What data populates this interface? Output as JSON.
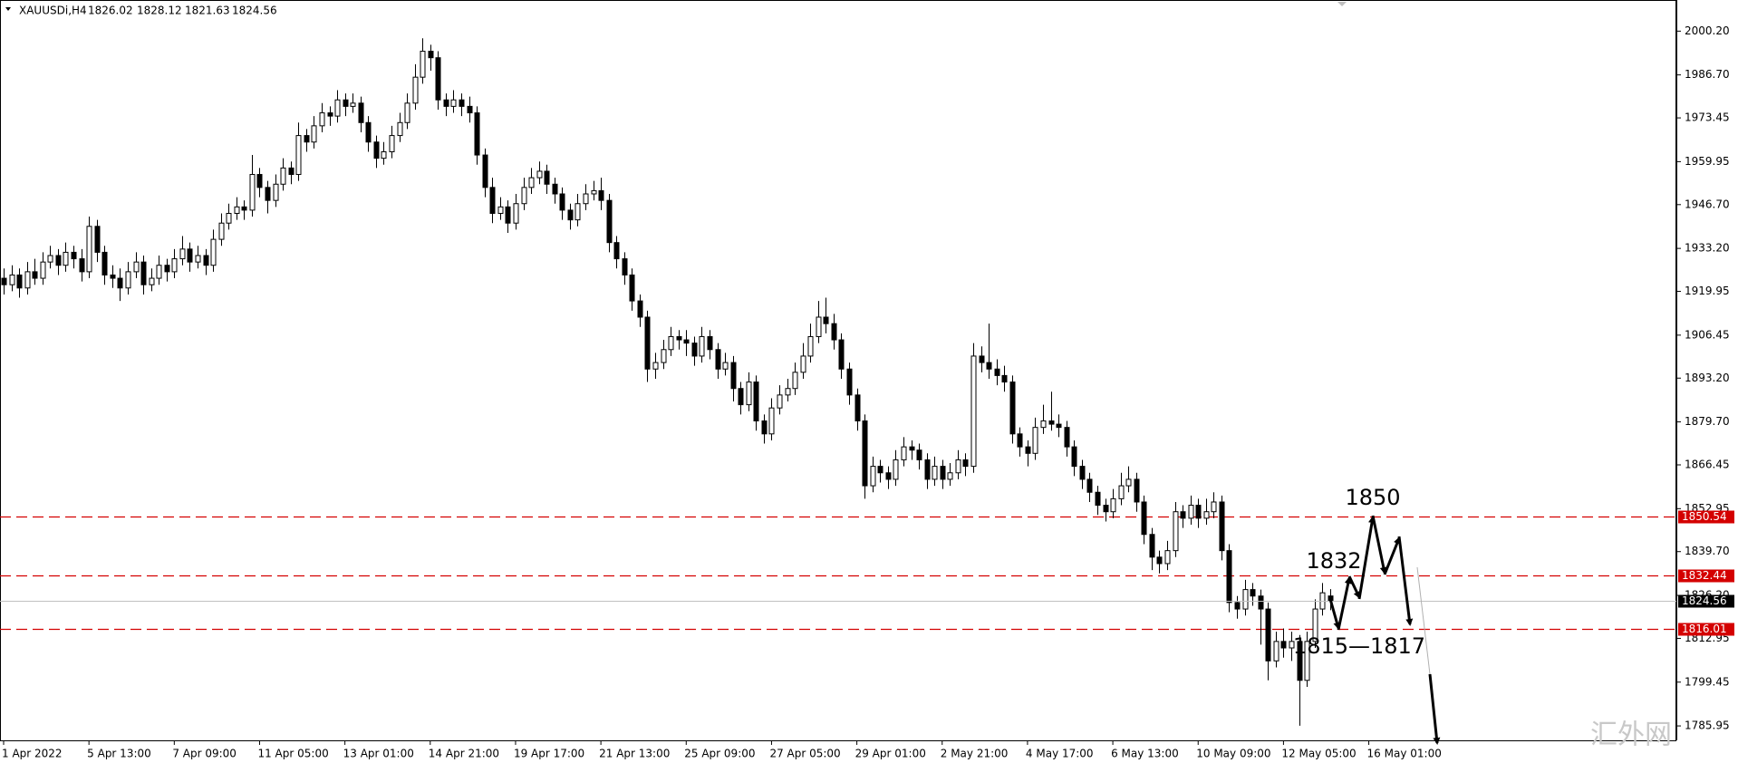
{
  "chart_data": {
    "type": "candlestick",
    "symbol": "XAUUSDi,H4",
    "watermark": "汇外网",
    "bull_color": "#ffffff",
    "bear_color": "#000000",
    "grid": false,
    "ylim": [
      1781.5,
      2009.8
    ],
    "yticks": [
      {
        "value": 2000.2,
        "label": "2000.20"
      },
      {
        "value": 1986.7,
        "label": "1986.70"
      },
      1973.45,
      1959.95,
      {
        "value": 1946.7,
        "label": "1946.70"
      },
      {
        "value": 1933.2,
        "label": "1933.20"
      },
      1919.95,
      1906.45,
      {
        "value": 1893.2,
        "label": "1893.20"
      },
      {
        "value": 1879.7,
        "label": "1879.70"
      },
      1866.45,
      1852.95,
      {
        "value": 1839.7,
        "label": "1839.70"
      },
      {
        "value": 1826.2,
        "label": "1826.20"
      },
      1812.95,
      1799.45,
      1785.95
    ],
    "levels": [
      {
        "value": 1850.54,
        "color": "#d40000"
      },
      {
        "value": 1832.44,
        "color": "#d40000"
      },
      {
        "value": 1816.01,
        "color": "#d40000"
      }
    ],
    "last_price_color": "#c0c0c0",
    "annotations": [
      "1850",
      "1832",
      "1815—1817"
    ],
    "categories": [
      "1 Apr 2022",
      null,
      null,
      null,
      null,
      null,
      null,
      null,
      null,
      null,
      null,
      "5 Apr 13:00",
      null,
      null,
      null,
      null,
      null,
      null,
      null,
      null,
      null,
      null,
      "7 Apr 09:00",
      null,
      null,
      null,
      null,
      null,
      null,
      null,
      null,
      null,
      null,
      "11 Apr 05:00",
      null,
      null,
      null,
      null,
      null,
      null,
      null,
      null,
      null,
      null,
      "13 Apr 01:00",
      null,
      null,
      null,
      null,
      null,
      null,
      null,
      null,
      null,
      null,
      "14 Apr 21:00",
      null,
      null,
      null,
      null,
      null,
      null,
      null,
      null,
      null,
      null,
      "19 Apr 17:00",
      null,
      null,
      null,
      null,
      null,
      null,
      null,
      null,
      null,
      null,
      "21 Apr 13:00",
      null,
      null,
      null,
      null,
      null,
      null,
      null,
      null,
      null,
      null,
      "25 Apr 09:00",
      null,
      null,
      null,
      null,
      null,
      null,
      null,
      null,
      null,
      null,
      "27 Apr 05:00",
      null,
      null,
      null,
      null,
      null,
      null,
      null,
      null,
      null,
      null,
      "29 Apr 01:00",
      null,
      null,
      null,
      null,
      null,
      null,
      null,
      null,
      null,
      null,
      "2 May 21:00",
      null,
      null,
      null,
      null,
      null,
      null,
      null,
      null,
      null,
      null,
      "4 May 17:00",
      null,
      null,
      null,
      null,
      null,
      null,
      null,
      null,
      null,
      null,
      "6 May 13:00",
      null,
      null,
      null,
      null,
      null,
      null,
      null,
      null,
      null,
      null,
      "10 May 09:00",
      null,
      null,
      null,
      null,
      null,
      null,
      null,
      null,
      null,
      null,
      "12 May 05:00",
      null,
      null,
      null,
      null,
      null,
      null,
      null,
      null,
      null,
      null,
      "16 May 01:00"
    ],
    "candles": [
      [
        1924,
        1927,
        1919,
        1922
      ],
      [
        1922,
        1928,
        1920,
        1925
      ],
      [
        1925,
        1927,
        1918,
        1921
      ],
      [
        1921,
        1929,
        1919,
        1926
      ],
      [
        1926,
        1930,
        1922,
        1924
      ],
      [
        1924,
        1932,
        1922,
        1929
      ],
      [
        1929,
        1934,
        1927,
        1931
      ],
      [
        1931,
        1933,
        1925,
        1928
      ],
      [
        1928,
        1935,
        1926,
        1932
      ],
      [
        1932,
        1934,
        1927,
        1930
      ],
      [
        1930,
        1933,
        1923,
        1926
      ],
      [
        1926,
        1943,
        1924,
        1940
      ],
      [
        1940,
        1942,
        1929,
        1932
      ],
      [
        1932,
        1934,
        1922,
        1925
      ],
      [
        1925,
        1928,
        1921,
        1924
      ],
      [
        1924,
        1927,
        1917,
        1921
      ],
      [
        1921,
        1929,
        1919,
        1926
      ],
      [
        1926,
        1932,
        1924,
        1929
      ],
      [
        1929,
        1931,
        1919,
        1922
      ],
      [
        1922,
        1927,
        1920,
        1924
      ],
      [
        1924,
        1931,
        1922,
        1928
      ],
      [
        1928,
        1930,
        1923,
        1926
      ],
      [
        1926,
        1933,
        1924,
        1930
      ],
      [
        1930,
        1937,
        1928,
        1933
      ],
      [
        1933,
        1935,
        1926,
        1929
      ],
      [
        1929,
        1934,
        1927,
        1931
      ],
      [
        1931,
        1933,
        1925,
        1928
      ],
      [
        1928,
        1939,
        1926,
        1936
      ],
      [
        1936,
        1944,
        1934,
        1941
      ],
      [
        1941,
        1947,
        1939,
        1944
      ],
      [
        1944,
        1949,
        1942,
        1946
      ],
      [
        1946,
        1948,
        1942,
        1945
      ],
      [
        1945,
        1962,
        1943,
        1956
      ],
      [
        1956,
        1958,
        1949,
        1952
      ],
      [
        1952,
        1954,
        1944,
        1948
      ],
      [
        1948,
        1956,
        1946,
        1953
      ],
      [
        1953,
        1961,
        1951,
        1958
      ],
      [
        1958,
        1960,
        1953,
        1956
      ],
      [
        1956,
        1972,
        1954,
        1968
      ],
      [
        1968,
        1970,
        1963,
        1966
      ],
      [
        1966,
        1974,
        1964,
        1971
      ],
      [
        1971,
        1978,
        1969,
        1975
      ],
      [
        1975,
        1977,
        1971,
        1974
      ],
      [
        1974,
        1982,
        1972,
        1979
      ],
      [
        1979,
        1981,
        1974,
        1977
      ],
      [
        1977,
        1981,
        1975,
        1978
      ],
      [
        1978,
        1980,
        1969,
        1972
      ],
      [
        1972,
        1974,
        1963,
        1966
      ],
      [
        1966,
        1968,
        1958,
        1961
      ],
      [
        1961,
        1966,
        1959,
        1963
      ],
      [
        1963,
        1971,
        1961,
        1968
      ],
      [
        1968,
        1975,
        1966,
        1972
      ],
      [
        1972,
        1981,
        1970,
        1978
      ],
      [
        1978,
        1990,
        1976,
        1986
      ],
      [
        1986,
        1998,
        1984,
        1994
      ],
      [
        1994,
        1996,
        1988,
        1992
      ],
      [
        1992,
        1994,
        1976,
        1979
      ],
      [
        1979,
        1981,
        1974,
        1977
      ],
      [
        1977,
        1982,
        1975,
        1979
      ],
      [
        1979,
        1981,
        1974,
        1977
      ],
      [
        1977,
        1980,
        1972,
        1975
      ],
      [
        1975,
        1977,
        1959,
        1962
      ],
      [
        1962,
        1964,
        1949,
        1952
      ],
      [
        1952,
        1955,
        1941,
        1944
      ],
      [
        1944,
        1949,
        1942,
        1946
      ],
      [
        1946,
        1948,
        1938,
        1941
      ],
      [
        1941,
        1950,
        1939,
        1947
      ],
      [
        1947,
        1955,
        1945,
        1952
      ],
      [
        1952,
        1958,
        1950,
        1955
      ],
      [
        1955,
        1960,
        1953,
        1957
      ],
      [
        1957,
        1959,
        1950,
        1953
      ],
      [
        1953,
        1955,
        1947,
        1950
      ],
      [
        1950,
        1952,
        1942,
        1945
      ],
      [
        1945,
        1947,
        1939,
        1942
      ],
      [
        1942,
        1950,
        1940,
        1947
      ],
      [
        1947,
        1953,
        1945,
        1950
      ],
      [
        1950,
        1954,
        1948,
        1951
      ],
      [
        1951,
        1955,
        1945,
        1948
      ],
      [
        1948,
        1950,
        1932,
        1935
      ],
      [
        1935,
        1937,
        1927,
        1930
      ],
      [
        1930,
        1932,
        1922,
        1925
      ],
      [
        1925,
        1927,
        1914,
        1917
      ],
      [
        1917,
        1919,
        1909,
        1912
      ],
      [
        1912,
        1914,
        1892,
        1896
      ],
      [
        1896,
        1901,
        1893,
        1898
      ],
      [
        1898,
        1905,
        1896,
        1902
      ],
      [
        1902,
        1909,
        1900,
        1906
      ],
      [
        1906,
        1908,
        1902,
        1905
      ],
      [
        1905,
        1908,
        1900,
        1904
      ],
      [
        1904,
        1906,
        1897,
        1900
      ],
      [
        1900,
        1909,
        1898,
        1906
      ],
      [
        1906,
        1908,
        1899,
        1902
      ],
      [
        1902,
        1904,
        1893,
        1896
      ],
      [
        1896,
        1901,
        1894,
        1898
      ],
      [
        1898,
        1900,
        1886,
        1890
      ],
      [
        1890,
        1892,
        1882,
        1885
      ],
      [
        1885,
        1895,
        1883,
        1892
      ],
      [
        1892,
        1894,
        1877,
        1880
      ],
      [
        1880,
        1882,
        1873,
        1876
      ],
      [
        1876,
        1887,
        1874,
        1884
      ],
      [
        1884,
        1891,
        1882,
        1888
      ],
      [
        1888,
        1893,
        1886,
        1890
      ],
      [
        1890,
        1898,
        1888,
        1895
      ],
      [
        1895,
        1904,
        1893,
        1900
      ],
      [
        1900,
        1910,
        1898,
        1906
      ],
      [
        1906,
        1917,
        1904,
        1912
      ],
      [
        1912,
        1918,
        1907,
        1910
      ],
      [
        1910,
        1913,
        1902,
        1905
      ],
      [
        1905,
        1907,
        1893,
        1896
      ],
      [
        1896,
        1898,
        1885,
        1888
      ],
      [
        1888,
        1890,
        1877,
        1880
      ],
      [
        1880,
        1882,
        1856,
        1860
      ],
      [
        1860,
        1869,
        1858,
        1866
      ],
      [
        1866,
        1868,
        1861,
        1864
      ],
      [
        1864,
        1866,
        1859,
        1862
      ],
      [
        1862,
        1871,
        1860,
        1868
      ],
      [
        1868,
        1875,
        1866,
        1872
      ],
      [
        1872,
        1874,
        1868,
        1871
      ],
      [
        1871,
        1873,
        1865,
        1868
      ],
      [
        1868,
        1870,
        1859,
        1862
      ],
      [
        1862,
        1869,
        1860,
        1866
      ],
      [
        1866,
        1868,
        1859,
        1862
      ],
      [
        1862,
        1867,
        1860,
        1864
      ],
      [
        1864,
        1871,
        1862,
        1868
      ],
      [
        1868,
        1870,
        1863,
        1866
      ],
      [
        1866,
        1904,
        1864,
        1900
      ],
      [
        1900,
        1903,
        1895,
        1898
      ],
      [
        1898,
        1910,
        1893,
        1896
      ],
      [
        1896,
        1899,
        1891,
        1894
      ],
      [
        1894,
        1897,
        1889,
        1892
      ],
      [
        1892,
        1894,
        1873,
        1876
      ],
      [
        1876,
        1878,
        1869,
        1872
      ],
      [
        1872,
        1874,
        1866,
        1870
      ],
      [
        1870,
        1881,
        1868,
        1878
      ],
      [
        1878,
        1885,
        1876,
        1880
      ],
      [
        1880,
        1889,
        1877,
        1879
      ],
      [
        1879,
        1882,
        1875,
        1878
      ],
      [
        1878,
        1880,
        1869,
        1872
      ],
      [
        1872,
        1874,
        1863,
        1866
      ],
      [
        1866,
        1868,
        1859,
        1862
      ],
      [
        1862,
        1864,
        1855,
        1858
      ],
      [
        1858,
        1860,
        1851,
        1854
      ],
      [
        1854,
        1856,
        1849,
        1852
      ],
      [
        1852,
        1859,
        1850,
        1856
      ],
      [
        1856,
        1864,
        1854,
        1860
      ],
      [
        1860,
        1866,
        1858,
        1862
      ],
      [
        1862,
        1864,
        1852,
        1855
      ],
      [
        1855,
        1857,
        1842,
        1845
      ],
      [
        1845,
        1847,
        1834,
        1838
      ],
      [
        1838,
        1840,
        1833,
        1836
      ],
      [
        1836,
        1843,
        1834,
        1840
      ],
      [
        1840,
        1855,
        1838,
        1852
      ],
      [
        1852,
        1854,
        1847,
        1850
      ],
      [
        1850,
        1857,
        1848,
        1854
      ],
      [
        1854,
        1856,
        1847,
        1850
      ],
      [
        1850,
        1856,
        1848,
        1852
      ],
      [
        1852,
        1858,
        1850,
        1855
      ],
      [
        1855,
        1857,
        1837,
        1840
      ],
      [
        1840,
        1842,
        1821,
        1824
      ],
      [
        1824,
        1826,
        1819,
        1822
      ],
      [
        1822,
        1831,
        1820,
        1828
      ],
      [
        1828,
        1830,
        1823,
        1826
      ],
      [
        1826,
        1828,
        1811,
        1822
      ],
      [
        1822,
        1824,
        1800,
        1806
      ],
      [
        1806,
        1815,
        1804,
        1812
      ],
      [
        1812,
        1816,
        1807,
        1810
      ],
      [
        1810,
        1815,
        1806,
        1812
      ],
      [
        1812,
        1814,
        1786,
        1800
      ],
      [
        1800,
        1815,
        1798,
        1812
      ],
      [
        1812,
        1825,
        1810,
        1822
      ],
      [
        1822,
        1830,
        1820,
        1827
      ],
      [
        1826.02,
        1828.12,
        1821.63,
        1824.56
      ],
      null,
      null,
      null,
      null,
      null
    ]
  }
}
